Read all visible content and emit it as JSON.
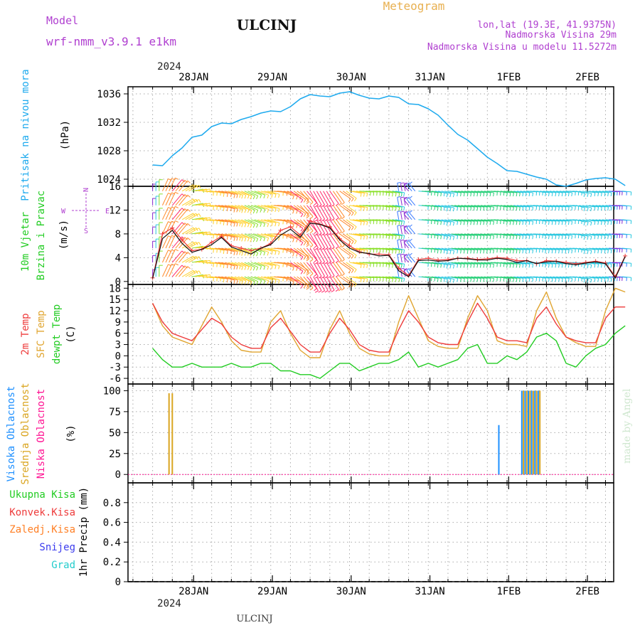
{
  "header": {
    "model_label": "Model",
    "model_name": "wrf-nmm_v3.9.1 e1km",
    "station": "ULCINJ",
    "meteogram": "Meteogram",
    "lonlat": "lon,lat (19.3E, 41.9375N)",
    "altitude": "Nadmorska Visina 29m",
    "model_altitude": "Nadmorska Visina u modelu 11.5272m",
    "footer_station": "ULCINJ",
    "watermark": "made by Angel",
    "year": "2024"
  },
  "colors": {
    "pressure": "#1eaaee",
    "temp2m": "#ee3b3b",
    "sfc_temp": "#e0a530",
    "dewpoint": "#22cc22",
    "high_cloud": "#1e90ff",
    "mid_cloud": "#daa520",
    "low_cloud": "#ff1493",
    "ukupna": "#22cc22",
    "konvek": "#ee3b3b",
    "zaledj": "#ff7f24",
    "snijeg": "#3b3bee",
    "grad": "#22cccc",
    "model_text": "#b040d0",
    "meteogram_text": "#e8b050",
    "wind_compass": "#b040d0"
  },
  "chart_data": [
    {
      "type": "line",
      "panel": "pressure",
      "ylabel": "Pritisak na nivou mora",
      "unit": "(hPa)",
      "ylim": [
        1023,
        1037
      ],
      "yticks": [
        1024,
        1028,
        1032,
        1036
      ],
      "x_day_ticks": [
        "28JAN",
        "29JAN",
        "30JAN",
        "31JAN",
        "1FEB",
        "2FEB"
      ],
      "x_hours": [
        0,
        3,
        6,
        9,
        12,
        15,
        18,
        21,
        24,
        27,
        30,
        33,
        36,
        39,
        42,
        45,
        48,
        51,
        54,
        57,
        60,
        63,
        66,
        69,
        72,
        75,
        78,
        81,
        84,
        87,
        90,
        93,
        96,
        99,
        102,
        105,
        108,
        111,
        114,
        117,
        120,
        123,
        126,
        129,
        132,
        135,
        138,
        141,
        144
      ],
      "values": [
        1026,
        1025.9,
        1027.3,
        1028.4,
        1029.9,
        1030.2,
        1031.4,
        1031.9,
        1031.8,
        1032.4,
        1032.8,
        1033.3,
        1033.6,
        1033.5,
        1034.2,
        1035.3,
        1035.9,
        1035.7,
        1035.6,
        1036.1,
        1036.3,
        1035.8,
        1035.4,
        1035.3,
        1035.7,
        1035.5,
        1034.6,
        1034.5,
        1033.9,
        1033.0,
        1031.6,
        1030.3,
        1029.5,
        1028.3,
        1027.1,
        1026.2,
        1025.2,
        1025.1,
        1024.7,
        1024.3,
        1024.0,
        1023.2,
        1023.0,
        1023.4,
        1023.9,
        1024.1,
        1024.2,
        1024.0,
        1023.1
      ]
    },
    {
      "type": "line",
      "panel": "wind",
      "ylabel": "10m Vjetar Brzina i Pravac",
      "unit": "(m/s)",
      "compass": [
        "N",
        "E",
        "S",
        "W"
      ],
      "ylim": [
        -0.5,
        16
      ],
      "yticks": [
        0,
        4,
        8,
        12,
        16
      ],
      "x_hours": [
        0,
        3,
        6,
        9,
        12,
        15,
        18,
        21,
        24,
        27,
        30,
        33,
        36,
        39,
        42,
        45,
        48,
        51,
        54,
        57,
        60,
        63,
        66,
        69,
        72,
        75,
        78,
        81,
        84,
        87,
        90,
        93,
        96,
        99,
        102,
        105,
        108,
        111,
        114,
        117,
        120,
        123,
        126,
        129,
        132,
        135,
        138,
        141,
        144
      ],
      "series": [
        {
          "name": "speed",
          "values": [
            0.5,
            7.2,
            8.6,
            6.4,
            4.9,
            5.4,
            6.2,
            7.4,
            5.8,
            5.2,
            4.6,
            5.6,
            6.2,
            7.8,
            8.8,
            7.4,
            9.8,
            9.6,
            9.0,
            7.0,
            5.6,
            4.9,
            4.7,
            4.3,
            4.4,
            1.8,
            0.8,
            3.5,
            3.6,
            3.4,
            3.5,
            3.9,
            3.8,
            3.6,
            3.6,
            3.9,
            3.7,
            3.2,
            3.5,
            3.0,
            3.3,
            3.4,
            3.0,
            2.8,
            3.1,
            3.3,
            3.0,
            0.6,
            4.2
          ]
        },
        {
          "name": "gust",
          "values": [
            0.6,
            8.0,
            9.0,
            7.0,
            5.2,
            5.4,
            6.6,
            7.6,
            6.0,
            5.6,
            5.2,
            5.6,
            6.4,
            8.6,
            9.2,
            7.8,
            10.2,
            9.6,
            9.2,
            7.2,
            6.0,
            5.0,
            4.6,
            4.6,
            4.5,
            2.2,
            1.0,
            3.7,
            3.9,
            3.6,
            3.7,
            3.9,
            3.9,
            3.7,
            3.8,
            4.0,
            3.9,
            3.5,
            3.5,
            3.0,
            3.5,
            3.4,
            3.2,
            3.0,
            3.2,
            3.4,
            3.1,
            0.8,
            4.3
          ]
        }
      ],
      "wind_dir_deg": [
        0,
        25,
        40,
        60,
        80,
        95,
        100,
        105,
        110,
        115,
        110,
        105,
        95,
        110,
        125,
        140,
        150,
        150,
        145,
        125,
        100,
        95,
        95,
        100,
        100,
        350,
        320,
        95,
        100,
        105,
        100,
        100,
        100,
        100,
        95,
        100,
        100,
        100,
        95,
        100,
        100,
        100,
        95,
        105,
        100,
        100,
        95,
        95,
        100
      ]
    },
    {
      "type": "line",
      "panel": "temperature",
      "ylabel_parts": [
        "2m Temp",
        "SFC Temp",
        "dewpt Temp"
      ],
      "unit": "(C)",
      "ylim": [
        -7.5,
        19
      ],
      "yticks": [
        -6,
        -3,
        0,
        3,
        6,
        9,
        12,
        15,
        18
      ],
      "x_hours": [
        0,
        3,
        6,
        9,
        12,
        15,
        18,
        21,
        24,
        27,
        30,
        33,
        36,
        39,
        42,
        45,
        48,
        51,
        54,
        57,
        60,
        63,
        66,
        69,
        72,
        75,
        78,
        81,
        84,
        87,
        90,
        93,
        96,
        99,
        102,
        105,
        108,
        111,
        114,
        117,
        120,
        123,
        126,
        129,
        132,
        135,
        138,
        141,
        144
      ],
      "series": [
        {
          "name": "2m Temp",
          "values": [
            14,
            9,
            6,
            5,
            4,
            7,
            10,
            8.5,
            5,
            3,
            2,
            2,
            7.5,
            10,
            6.5,
            3,
            1,
            1,
            6,
            10,
            7,
            3,
            1.5,
            1,
            1,
            7,
            12,
            9,
            5,
            3.5,
            3,
            3,
            9,
            14,
            10,
            5,
            4,
            4,
            3.5,
            10,
            13,
            8.5,
            5,
            4,
            3.5,
            3.5,
            10,
            13,
            13
          ]
        },
        {
          "name": "SFC Temp",
          "values": [
            14,
            8,
            5,
            4,
            3,
            8,
            13,
            9,
            4,
            1.5,
            1,
            1,
            9,
            12,
            6,
            1.5,
            -0.5,
            -0.5,
            7,
            12,
            6,
            2,
            0.5,
            0,
            0,
            9,
            16,
            10,
            4,
            2.5,
            2,
            2,
            10,
            16,
            12,
            4,
            3,
            3,
            2.5,
            12,
            17,
            10,
            5,
            3.5,
            2.5,
            2.5,
            12,
            18,
            17
          ]
        },
        {
          "name": "dewpt Temp",
          "values": [
            2,
            -1,
            -3,
            -3,
            -2,
            -3,
            -3,
            -3,
            -2,
            -3,
            -3,
            -2,
            -2,
            -4,
            -4,
            -5,
            -5,
            -6,
            -4,
            -2,
            -2,
            -4,
            -3,
            -2,
            -2,
            -1,
            1,
            -3,
            -2,
            -3,
            -2,
            -1,
            2,
            3,
            -2,
            -2,
            0,
            -1,
            1,
            5,
            6,
            4,
            -2,
            -3,
            0,
            2,
            3,
            6,
            8
          ]
        }
      ]
    },
    {
      "type": "bar",
      "panel": "cloud",
      "ylabel_parts": [
        "Visoka Oblacnost",
        "Srednja Oblacnost",
        "Niska Oblacnost"
      ],
      "unit": "(%)",
      "ylim": [
        -10,
        108
      ],
      "yticks": [
        0,
        25,
        50,
        75,
        100
      ],
      "series": [
        {
          "name": "Visoka Oblacnost",
          "x_hours": [
            105.5,
            112.5,
            113.5,
            114.5,
            115.5,
            116.5,
            117.5
          ],
          "values": [
            59,
            100,
            100,
            100,
            100,
            100,
            100
          ]
        },
        {
          "name": "Srednja Oblacnost",
          "x_hours": [
            5,
            6,
            113,
            114,
            115,
            116,
            117,
            118
          ],
          "values": [
            97,
            97,
            100,
            100,
            100,
            100,
            100,
            100
          ]
        },
        {
          "name": "Niska Oblacnost",
          "x_hours": [],
          "values": []
        }
      ]
    },
    {
      "type": "bar",
      "panel": "precip",
      "ylabel": "1hr Precip",
      "unit": "(mm)",
      "ylim": [
        0,
        1
      ],
      "yticks": [
        0,
        0.2,
        0.4,
        0.6,
        0.8
      ],
      "legend": [
        "Ukupna Kisa",
        "Konvek.Kisa",
        "Zaledj.Kisa",
        "Snijeg",
        "Grad"
      ],
      "values": []
    }
  ]
}
